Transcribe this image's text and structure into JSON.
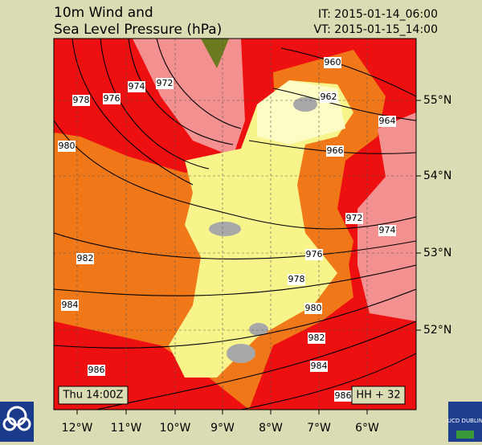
{
  "header": {
    "title_lines": [
      "10m Wind and",
      "Sea Level Pressure (hPa)"
    ],
    "it": "IT: 2015-01-14_06:00",
    "vt": "VT: 2015-01-15_14:00"
  },
  "axes": {
    "lon_labels": [
      "12°W",
      "11°W",
      "10°W",
      "9°W",
      "8°W",
      "7°W",
      "6°W"
    ],
    "lat_labels": [
      "55°N",
      "54°N",
      "53°N",
      "52°N"
    ]
  },
  "isobar_labels": [
    "978",
    "976",
    "974",
    "972",
    "960",
    "962",
    "964",
    "966",
    "980",
    "972",
    "974",
    "976",
    "982",
    "978",
    "980",
    "984",
    "982",
    "984",
    "986",
    "986"
  ],
  "footer": {
    "time": "Thu 14:00Z",
    "lead": "HH + 32"
  },
  "logos": {
    "right_text": "UCD DUBLIN"
  }
}
